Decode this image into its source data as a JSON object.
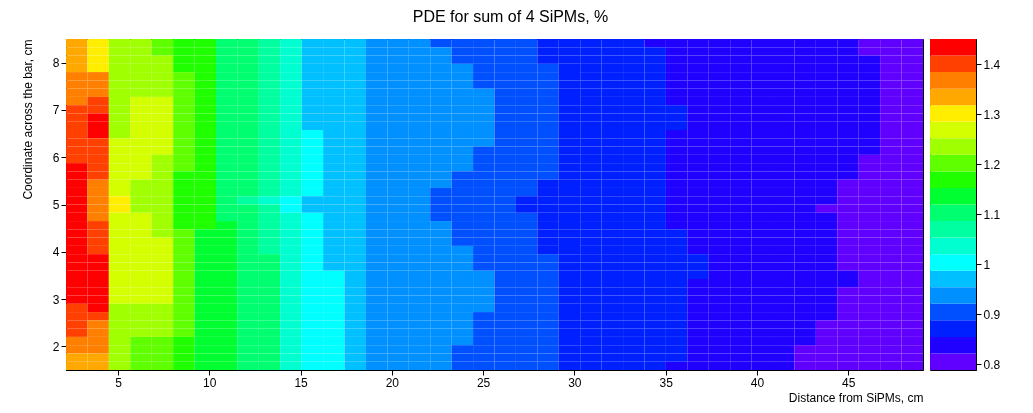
{
  "chart_data": {
    "type": "heatmap",
    "title": "PDE for sum of 4 SiPMs, %",
    "xlabel": "Distance from SiPMs, cm",
    "ylabel": "Coordinate across the bar, cm",
    "xlim": [
      2.15,
      49.1
    ],
    "xticks": [
      5,
      10,
      15,
      20,
      25,
      30,
      35,
      40,
      45
    ],
    "ylim": [
      1.5,
      8.5
    ],
    "yticks": [
      2,
      3,
      4,
      5,
      6,
      7,
      8
    ],
    "clim": [
      0.788,
      1.45
    ],
    "cticks": [
      0.8,
      0.9,
      1,
      1.1,
      1.2,
      1.3,
      1.4
    ],
    "colors": [
      "#6000ff",
      "#2000ff",
      "#0020ff",
      "#0050ff",
      "#0090ff",
      "#00c0ff",
      "#00ffff",
      "#00ffd0",
      "#00ffa0",
      "#00ff70",
      "#00ff30",
      "#20ff00",
      "#60ff00",
      "#a0ff00",
      "#d4ff00",
      "#ffee00",
      "#ffa800",
      "#ff8000",
      "#ff4000",
      "#ff0000"
    ],
    "cells": [
      [
        1.33,
        1.3,
        1.24,
        1.24,
        1.2,
        1.17,
        1.17,
        1.1,
        1.1,
        1.07,
        1.04,
        0.97,
        0.97,
        0.97,
        0.94,
        0.94,
        0.94,
        0.9,
        0.9,
        0.9,
        0.9,
        0.9,
        0.87,
        0.87,
        0.87,
        0.87,
        0.87,
        0.84,
        0.84,
        0.84,
        0.84,
        0.84,
        0.84,
        0.84,
        0.84,
        0.84,
        0.84,
        0.8,
        0.8,
        0.8
      ],
      [
        1.33,
        1.3,
        1.24,
        1.24,
        1.2,
        1.17,
        1.17,
        1.1,
        1.1,
        1.07,
        1.04,
        0.97,
        0.97,
        0.97,
        0.94,
        0.94,
        0.94,
        0.94,
        0.9,
        0.9,
        0.9,
        0.9,
        0.87,
        0.87,
        0.87,
        0.87,
        0.87,
        0.87,
        0.84,
        0.84,
        0.84,
        0.84,
        0.84,
        0.84,
        0.84,
        0.84,
        0.84,
        0.8,
        0.8,
        0.8
      ],
      [
        1.33,
        1.3,
        1.24,
        1.24,
        1.24,
        1.17,
        1.17,
        1.1,
        1.1,
        1.07,
        1.04,
        0.97,
        0.97,
        0.97,
        0.94,
        0.94,
        0.94,
        0.94,
        0.9,
        0.9,
        0.9,
        0.9,
        0.87,
        0.87,
        0.87,
        0.87,
        0.87,
        0.87,
        0.84,
        0.84,
        0.84,
        0.84,
        0.84,
        0.84,
        0.84,
        0.84,
        0.84,
        0.84,
        0.8,
        0.8
      ],
      [
        1.33,
        1.3,
        1.24,
        1.24,
        1.24,
        1.17,
        1.17,
        1.1,
        1.1,
        1.07,
        1.04,
        0.97,
        0.97,
        0.97,
        0.94,
        0.94,
        0.94,
        0.94,
        0.94,
        0.9,
        0.9,
        0.9,
        0.9,
        0.87,
        0.87,
        0.87,
        0.87,
        0.87,
        0.84,
        0.84,
        0.84,
        0.84,
        0.84,
        0.84,
        0.84,
        0.84,
        0.84,
        0.84,
        0.8,
        0.8
      ],
      [
        1.37,
        1.37,
        1.24,
        1.24,
        1.24,
        1.2,
        1.17,
        1.1,
        1.1,
        1.07,
        1.04,
        0.97,
        0.97,
        0.97,
        0.94,
        0.94,
        0.94,
        0.94,
        0.94,
        0.9,
        0.9,
        0.9,
        0.9,
        0.87,
        0.87,
        0.87,
        0.87,
        0.87,
        0.84,
        0.84,
        0.84,
        0.84,
        0.84,
        0.84,
        0.84,
        0.84,
        0.84,
        0.84,
        0.8,
        0.8
      ],
      [
        1.37,
        1.37,
        1.24,
        1.24,
        1.24,
        1.2,
        1.17,
        1.1,
        1.1,
        1.07,
        1.04,
        0.97,
        0.97,
        0.97,
        0.94,
        0.94,
        0.94,
        0.94,
        0.94,
        0.9,
        0.9,
        0.9,
        0.9,
        0.87,
        0.87,
        0.87,
        0.87,
        0.87,
        0.84,
        0.84,
        0.84,
        0.84,
        0.84,
        0.84,
        0.84,
        0.84,
        0.84,
        0.84,
        0.8,
        0.8
      ],
      [
        1.37,
        1.37,
        1.24,
        1.24,
        1.24,
        1.2,
        1.17,
        1.1,
        1.1,
        1.07,
        1.04,
        0.97,
        0.97,
        0.97,
        0.94,
        0.94,
        0.94,
        0.94,
        0.94,
        0.94,
        0.9,
        0.9,
        0.9,
        0.87,
        0.87,
        0.87,
        0.87,
        0.87,
        0.84,
        0.84,
        0.84,
        0.84,
        0.84,
        0.84,
        0.84,
        0.84,
        0.84,
        0.84,
        0.8,
        0.8
      ],
      [
        1.37,
        1.4,
        1.24,
        1.27,
        1.27,
        1.2,
        1.17,
        1.1,
        1.1,
        1.07,
        1.04,
        0.97,
        0.97,
        0.97,
        0.94,
        0.94,
        0.94,
        0.94,
        0.94,
        0.94,
        0.9,
        0.9,
        0.9,
        0.87,
        0.87,
        0.87,
        0.87,
        0.87,
        0.84,
        0.84,
        0.84,
        0.84,
        0.84,
        0.84,
        0.84,
        0.84,
        0.84,
        0.84,
        0.8,
        0.8
      ],
      [
        1.4,
        1.4,
        1.24,
        1.27,
        1.27,
        1.2,
        1.17,
        1.1,
        1.1,
        1.07,
        1.04,
        0.97,
        0.97,
        0.97,
        0.94,
        0.94,
        0.94,
        0.94,
        0.94,
        0.94,
        0.9,
        0.9,
        0.9,
        0.87,
        0.87,
        0.87,
        0.87,
        0.87,
        0.87,
        0.84,
        0.84,
        0.84,
        0.84,
        0.84,
        0.84,
        0.84,
        0.84,
        0.84,
        0.8,
        0.8
      ],
      [
        1.4,
        1.43,
        1.24,
        1.27,
        1.27,
        1.2,
        1.17,
        1.1,
        1.1,
        1.07,
        1.04,
        0.97,
        0.97,
        0.97,
        0.94,
        0.94,
        0.94,
        0.94,
        0.94,
        0.94,
        0.9,
        0.9,
        0.9,
        0.87,
        0.87,
        0.87,
        0.87,
        0.87,
        0.87,
        0.84,
        0.84,
        0.84,
        0.84,
        0.84,
        0.84,
        0.84,
        0.84,
        0.84,
        0.8,
        0.8
      ],
      [
        1.4,
        1.43,
        1.24,
        1.27,
        1.27,
        1.2,
        1.17,
        1.1,
        1.1,
        1.07,
        1.04,
        0.97,
        0.97,
        0.97,
        0.94,
        0.94,
        0.94,
        0.94,
        0.94,
        0.94,
        0.9,
        0.9,
        0.9,
        0.87,
        0.87,
        0.87,
        0.87,
        0.87,
        0.87,
        0.84,
        0.84,
        0.84,
        0.84,
        0.84,
        0.84,
        0.84,
        0.84,
        0.84,
        0.8,
        0.8
      ],
      [
        1.4,
        1.43,
        1.24,
        1.27,
        1.27,
        1.2,
        1.17,
        1.1,
        1.1,
        1.07,
        1.04,
        1.0,
        0.97,
        0.97,
        0.94,
        0.94,
        0.94,
        0.94,
        0.94,
        0.94,
        0.9,
        0.9,
        0.9,
        0.87,
        0.87,
        0.87,
        0.87,
        0.87,
        0.84,
        0.84,
        0.84,
        0.84,
        0.84,
        0.84,
        0.84,
        0.84,
        0.84,
        0.84,
        0.8,
        0.8
      ],
      [
        1.4,
        1.4,
        1.27,
        1.27,
        1.27,
        1.2,
        1.17,
        1.1,
        1.1,
        1.07,
        1.04,
        1.0,
        0.97,
        0.97,
        0.94,
        0.94,
        0.94,
        0.94,
        0.94,
        0.94,
        0.9,
        0.9,
        0.9,
        0.87,
        0.87,
        0.87,
        0.87,
        0.87,
        0.84,
        0.84,
        0.84,
        0.84,
        0.84,
        0.84,
        0.84,
        0.84,
        0.84,
        0.84,
        0.8,
        0.8
      ],
      [
        1.4,
        1.4,
        1.27,
        1.27,
        1.27,
        1.2,
        1.17,
        1.1,
        1.1,
        1.07,
        1.04,
        1.0,
        0.97,
        0.97,
        0.94,
        0.94,
        0.94,
        0.94,
        0.94,
        0.9,
        0.9,
        0.9,
        0.9,
        0.87,
        0.87,
        0.87,
        0.87,
        0.87,
        0.84,
        0.84,
        0.84,
        0.84,
        0.84,
        0.84,
        0.84,
        0.84,
        0.84,
        0.84,
        0.8,
        0.8
      ],
      [
        1.4,
        1.4,
        1.27,
        1.27,
        1.24,
        1.2,
        1.17,
        1.1,
        1.1,
        1.07,
        1.04,
        1.0,
        0.97,
        0.97,
        0.94,
        0.94,
        0.94,
        0.94,
        0.94,
        0.9,
        0.9,
        0.9,
        0.9,
        0.87,
        0.87,
        0.87,
        0.87,
        0.87,
        0.84,
        0.84,
        0.84,
        0.84,
        0.84,
        0.84,
        0.84,
        0.84,
        0.84,
        0.8,
        0.8,
        0.8
      ],
      [
        1.43,
        1.4,
        1.27,
        1.27,
        1.24,
        1.2,
        1.17,
        1.1,
        1.1,
        1.07,
        1.04,
        1.0,
        0.97,
        0.97,
        0.94,
        0.94,
        0.94,
        0.94,
        0.94,
        0.9,
        0.9,
        0.9,
        0.9,
        0.87,
        0.87,
        0.87,
        0.87,
        0.87,
        0.84,
        0.84,
        0.84,
        0.84,
        0.84,
        0.84,
        0.84,
        0.84,
        0.84,
        0.8,
        0.8,
        0.8
      ],
      [
        1.43,
        1.4,
        1.27,
        1.27,
        1.24,
        1.17,
        1.17,
        1.1,
        1.1,
        1.07,
        1.04,
        1.0,
        0.97,
        0.97,
        0.94,
        0.94,
        0.94,
        0.94,
        0.9,
        0.9,
        0.9,
        0.9,
        0.9,
        0.87,
        0.87,
        0.87,
        0.87,
        0.87,
        0.84,
        0.84,
        0.84,
        0.84,
        0.84,
        0.84,
        0.84,
        0.84,
        0.84,
        0.8,
        0.8,
        0.8
      ],
      [
        1.43,
        1.37,
        1.27,
        1.24,
        1.24,
        1.17,
        1.17,
        1.1,
        1.1,
        1.07,
        1.04,
        1.0,
        0.97,
        0.97,
        0.94,
        0.94,
        0.94,
        0.94,
        0.9,
        0.9,
        0.9,
        0.9,
        0.87,
        0.87,
        0.87,
        0.87,
        0.87,
        0.87,
        0.84,
        0.84,
        0.84,
        0.84,
        0.84,
        0.84,
        0.84,
        0.84,
        0.8,
        0.8,
        0.8,
        0.8
      ],
      [
        1.43,
        1.37,
        1.27,
        1.24,
        1.24,
        1.17,
        1.17,
        1.1,
        1.1,
        1.07,
        1.04,
        1.0,
        0.97,
        0.97,
        0.94,
        0.94,
        0.94,
        0.9,
        0.9,
        0.9,
        0.9,
        0.9,
        0.87,
        0.87,
        0.87,
        0.87,
        0.87,
        0.87,
        0.84,
        0.84,
        0.84,
        0.84,
        0.84,
        0.84,
        0.84,
        0.84,
        0.8,
        0.8,
        0.8,
        0.8
      ],
      [
        1.43,
        1.37,
        1.3,
        1.24,
        1.24,
        1.17,
        1.17,
        1.1,
        1.07,
        1.04,
        1.0,
        0.97,
        0.97,
        0.97,
        0.94,
        0.94,
        0.94,
        0.9,
        0.9,
        0.9,
        0.9,
        0.87,
        0.87,
        0.87,
        0.87,
        0.87,
        0.87,
        0.87,
        0.84,
        0.84,
        0.84,
        0.84,
        0.84,
        0.84,
        0.84,
        0.84,
        0.8,
        0.8,
        0.8,
        0.8
      ],
      [
        1.43,
        1.37,
        1.3,
        1.24,
        1.24,
        1.17,
        1.17,
        1.1,
        1.1,
        1.07,
        1.0,
        0.97,
        0.97,
        0.97,
        0.94,
        0.94,
        0.94,
        0.9,
        0.9,
        0.9,
        0.9,
        0.87,
        0.87,
        0.87,
        0.87,
        0.87,
        0.87,
        0.87,
        0.84,
        0.84,
        0.84,
        0.84,
        0.84,
        0.84,
        0.84,
        0.8,
        0.8,
        0.8,
        0.8,
        0.8
      ],
      [
        1.43,
        1.37,
        1.27,
        1.27,
        1.24,
        1.17,
        1.17,
        1.1,
        1.1,
        1.07,
        1.04,
        1.0,
        0.97,
        0.97,
        0.94,
        0.94,
        0.94,
        0.9,
        0.9,
        0.9,
        0.9,
        0.9,
        0.87,
        0.87,
        0.87,
        0.87,
        0.87,
        0.87,
        0.84,
        0.84,
        0.84,
        0.84,
        0.84,
        0.84,
        0.84,
        0.84,
        0.8,
        0.8,
        0.8,
        0.8
      ],
      [
        1.43,
        1.4,
        1.27,
        1.27,
        1.24,
        1.17,
        1.17,
        1.14,
        1.1,
        1.07,
        1.04,
        1.0,
        0.97,
        0.97,
        0.94,
        0.94,
        0.94,
        0.94,
        0.9,
        0.9,
        0.9,
        0.9,
        0.87,
        0.87,
        0.87,
        0.87,
        0.87,
        0.87,
        0.84,
        0.84,
        0.84,
        0.84,
        0.84,
        0.84,
        0.84,
        0.84,
        0.8,
        0.8,
        0.8,
        0.8
      ],
      [
        1.43,
        1.4,
        1.27,
        1.27,
        1.24,
        1.2,
        1.14,
        1.14,
        1.1,
        1.07,
        1.04,
        1.0,
        0.97,
        0.97,
        0.94,
        0.94,
        0.94,
        0.94,
        0.9,
        0.9,
        0.9,
        0.9,
        0.87,
        0.87,
        0.87,
        0.87,
        0.87,
        0.87,
        0.87,
        0.84,
        0.84,
        0.84,
        0.84,
        0.84,
        0.84,
        0.84,
        0.8,
        0.8,
        0.8,
        0.8
      ],
      [
        1.43,
        1.4,
        1.27,
        1.27,
        1.27,
        1.2,
        1.14,
        1.14,
        1.1,
        1.07,
        1.04,
        1.0,
        0.97,
        0.97,
        0.94,
        0.94,
        0.94,
        0.94,
        0.9,
        0.9,
        0.9,
        0.9,
        0.87,
        0.87,
        0.87,
        0.87,
        0.87,
        0.87,
        0.87,
        0.84,
        0.84,
        0.84,
        0.84,
        0.84,
        0.84,
        0.84,
        0.8,
        0.8,
        0.8,
        0.8
      ],
      [
        1.43,
        1.4,
        1.27,
        1.27,
        1.27,
        1.2,
        1.14,
        1.14,
        1.1,
        1.07,
        1.04,
        1.0,
        0.97,
        0.97,
        0.94,
        0.94,
        0.94,
        0.94,
        0.94,
        0.9,
        0.9,
        0.9,
        0.87,
        0.87,
        0.87,
        0.87,
        0.87,
        0.87,
        0.87,
        0.84,
        0.84,
        0.84,
        0.84,
        0.84,
        0.84,
        0.84,
        0.8,
        0.8,
        0.8,
        0.8
      ],
      [
        1.43,
        1.43,
        1.27,
        1.27,
        1.27,
        1.2,
        1.14,
        1.14,
        1.1,
        1.1,
        1.04,
        1.0,
        0.97,
        0.97,
        0.94,
        0.94,
        0.94,
        0.94,
        0.94,
        0.9,
        0.9,
        0.9,
        0.9,
        0.87,
        0.87,
        0.87,
        0.87,
        0.87,
        0.87,
        0.87,
        0.84,
        0.84,
        0.84,
        0.84,
        0.84,
        0.84,
        0.8,
        0.8,
        0.8,
        0.8
      ],
      [
        1.43,
        1.43,
        1.27,
        1.27,
        1.27,
        1.2,
        1.14,
        1.14,
        1.1,
        1.1,
        1.04,
        1.0,
        0.97,
        0.97,
        0.94,
        0.94,
        0.94,
        0.94,
        0.94,
        0.9,
        0.9,
        0.9,
        0.9,
        0.87,
        0.87,
        0.87,
        0.87,
        0.87,
        0.87,
        0.87,
        0.84,
        0.84,
        0.84,
        0.84,
        0.84,
        0.84,
        0.8,
        0.8,
        0.8,
        0.8
      ],
      [
        1.43,
        1.43,
        1.27,
        1.27,
        1.27,
        1.2,
        1.14,
        1.14,
        1.1,
        1.1,
        1.04,
        1.0,
        1.0,
        0.97,
        0.94,
        0.94,
        0.94,
        0.94,
        0.94,
        0.94,
        0.9,
        0.9,
        0.9,
        0.87,
        0.87,
        0.87,
        0.87,
        0.87,
        0.87,
        0.87,
        0.84,
        0.84,
        0.84,
        0.84,
        0.84,
        0.84,
        0.84,
        0.8,
        0.8,
        0.8
      ],
      [
        1.43,
        1.43,
        1.27,
        1.27,
        1.27,
        1.2,
        1.14,
        1.14,
        1.1,
        1.1,
        1.04,
        1.0,
        1.0,
        0.97,
        0.94,
        0.94,
        0.94,
        0.94,
        0.94,
        0.94,
        0.9,
        0.9,
        0.9,
        0.87,
        0.87,
        0.87,
        0.87,
        0.87,
        0.87,
        0.84,
        0.84,
        0.84,
        0.84,
        0.84,
        0.84,
        0.84,
        0.84,
        0.8,
        0.8,
        0.8
      ],
      [
        1.43,
        1.43,
        1.27,
        1.27,
        1.27,
        1.2,
        1.14,
        1.14,
        1.1,
        1.1,
        1.04,
        1.0,
        1.0,
        0.97,
        0.94,
        0.94,
        0.94,
        0.94,
        0.94,
        0.94,
        0.9,
        0.9,
        0.9,
        0.87,
        0.87,
        0.87,
        0.87,
        0.87,
        0.87,
        0.84,
        0.84,
        0.84,
        0.84,
        0.84,
        0.84,
        0.84,
        0.8,
        0.8,
        0.8,
        0.8
      ],
      [
        1.43,
        1.43,
        1.27,
        1.27,
        1.27,
        1.2,
        1.14,
        1.14,
        1.1,
        1.1,
        1.04,
        1.0,
        1.0,
        0.97,
        0.94,
        0.94,
        0.94,
        0.94,
        0.94,
        0.94,
        0.9,
        0.9,
        0.9,
        0.87,
        0.87,
        0.87,
        0.87,
        0.87,
        0.87,
        0.84,
        0.84,
        0.84,
        0.84,
        0.84,
        0.84,
        0.84,
        0.8,
        0.8,
        0.8,
        0.8
      ],
      [
        1.4,
        1.43,
        1.24,
        1.24,
        1.24,
        1.2,
        1.14,
        1.14,
        1.1,
        1.1,
        1.04,
        1.0,
        1.0,
        0.97,
        0.94,
        0.94,
        0.94,
        0.94,
        0.94,
        0.94,
        0.9,
        0.9,
        0.9,
        0.87,
        0.87,
        0.87,
        0.87,
        0.87,
        0.87,
        0.84,
        0.84,
        0.84,
        0.84,
        0.84,
        0.84,
        0.84,
        0.8,
        0.8,
        0.8,
        0.8
      ],
      [
        1.4,
        1.4,
        1.24,
        1.24,
        1.24,
        1.2,
        1.14,
        1.14,
        1.1,
        1.1,
        1.04,
        1.0,
        1.0,
        0.97,
        0.94,
        0.94,
        0.94,
        0.94,
        0.94,
        0.9,
        0.9,
        0.9,
        0.9,
        0.87,
        0.87,
        0.87,
        0.87,
        0.87,
        0.87,
        0.84,
        0.84,
        0.84,
        0.84,
        0.84,
        0.84,
        0.84,
        0.8,
        0.8,
        0.8,
        0.8
      ],
      [
        1.4,
        1.37,
        1.24,
        1.24,
        1.24,
        1.2,
        1.14,
        1.14,
        1.1,
        1.1,
        1.04,
        1.0,
        1.0,
        0.97,
        0.94,
        0.94,
        0.94,
        0.94,
        0.94,
        0.9,
        0.9,
        0.9,
        0.9,
        0.87,
        0.87,
        0.87,
        0.87,
        0.87,
        0.87,
        0.84,
        0.84,
        0.84,
        0.84,
        0.84,
        0.84,
        0.8,
        0.8,
        0.8,
        0.8,
        0.8
      ],
      [
        1.4,
        1.37,
        1.24,
        1.24,
        1.24,
        1.2,
        1.14,
        1.14,
        1.1,
        1.1,
        1.04,
        1.0,
        1.0,
        0.97,
        0.94,
        0.94,
        0.94,
        0.94,
        0.94,
        0.9,
        0.9,
        0.9,
        0.9,
        0.87,
        0.87,
        0.87,
        0.87,
        0.87,
        0.87,
        0.84,
        0.84,
        0.84,
        0.84,
        0.84,
        0.84,
        0.8,
        0.8,
        0.8,
        0.8,
        0.8
      ],
      [
        1.37,
        1.37,
        1.24,
        1.2,
        1.2,
        1.17,
        1.14,
        1.14,
        1.1,
        1.1,
        1.04,
        1.0,
        1.0,
        0.97,
        0.94,
        0.94,
        0.94,
        0.94,
        0.94,
        0.9,
        0.9,
        0.9,
        0.9,
        0.87,
        0.87,
        0.87,
        0.87,
        0.87,
        0.87,
        0.84,
        0.84,
        0.84,
        0.84,
        0.84,
        0.84,
        0.8,
        0.8,
        0.8,
        0.8,
        0.8
      ],
      [
        1.37,
        1.37,
        1.24,
        1.2,
        1.2,
        1.17,
        1.14,
        1.14,
        1.1,
        1.1,
        1.04,
        1.0,
        1.0,
        0.97,
        0.94,
        0.94,
        0.94,
        0.94,
        0.9,
        0.9,
        0.9,
        0.9,
        0.9,
        0.87,
        0.87,
        0.87,
        0.87,
        0.87,
        0.87,
        0.84,
        0.84,
        0.84,
        0.84,
        0.84,
        0.8,
        0.8,
        0.8,
        0.8,
        0.8,
        0.8
      ],
      [
        1.33,
        1.33,
        1.24,
        1.2,
        1.2,
        1.17,
        1.14,
        1.14,
        1.1,
        1.1,
        1.04,
        1.0,
        1.0,
        0.97,
        0.94,
        0.94,
        0.94,
        0.94,
        0.9,
        0.9,
        0.9,
        0.9,
        0.9,
        0.87,
        0.87,
        0.87,
        0.87,
        0.87,
        0.87,
        0.84,
        0.84,
        0.84,
        0.84,
        0.84,
        0.8,
        0.8,
        0.8,
        0.8,
        0.8,
        0.8
      ],
      [
        1.33,
        1.33,
        1.24,
        1.2,
        1.2,
        1.17,
        1.14,
        1.14,
        1.1,
        1.1,
        1.04,
        1.0,
        1.0,
        0.97,
        0.94,
        0.94,
        0.94,
        0.94,
        0.9,
        0.9,
        0.9,
        0.9,
        0.9,
        0.87,
        0.87,
        0.87,
        0.87,
        0.87,
        0.84,
        0.84,
        0.84,
        0.84,
        0.84,
        0.84,
        0.8,
        0.8,
        0.8,
        0.8,
        0.8,
        0.8
      ]
    ]
  }
}
